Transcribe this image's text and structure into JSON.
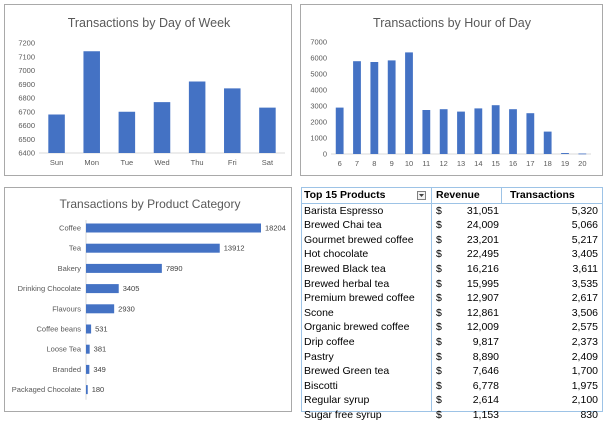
{
  "chart_data": [
    {
      "type": "bar",
      "title": "Transactions by Day of Week",
      "xlabel": "",
      "ylabel": "",
      "categories": [
        "Sun",
        "Mon",
        "Tue",
        "Wed",
        "Thu",
        "Fri",
        "Sat"
      ],
      "values": [
        6680,
        7140,
        6700,
        6770,
        6920,
        6870,
        6730
      ],
      "ylim": [
        6400,
        7200
      ],
      "yticks": [
        "6400",
        "6500",
        "6600",
        "6700",
        "6800",
        "6900",
        "7000",
        "7100",
        "7200"
      ],
      "grid": false,
      "bar_color": "#4472c4"
    },
    {
      "type": "bar",
      "title": "Transactions by Hour of Day",
      "xlabel": "",
      "ylabel": "",
      "categories": [
        "6",
        "7",
        "8",
        "9",
        "10",
        "11",
        "12",
        "13",
        "14",
        "15",
        "16",
        "17",
        "18",
        "19",
        "20"
      ],
      "values": [
        2900,
        5800,
        5750,
        5850,
        6350,
        2750,
        2800,
        2650,
        2850,
        3050,
        2800,
        2550,
        1400,
        60,
        30
      ],
      "ylim": [
        0,
        7000
      ],
      "yticks": [
        "0",
        "1000",
        "2000",
        "3000",
        "4000",
        "5000",
        "6000",
        "7000"
      ],
      "grid": false,
      "bar_color": "#4472c4"
    },
    {
      "type": "bar",
      "orientation": "horizontal",
      "title": "Transactions by Product Category",
      "xlabel": "",
      "ylabel": "",
      "categories": [
        "Coffee",
        "Tea",
        "Bakery",
        "Drinking Chocolate",
        "Flavours",
        "Coffee beans",
        "Loose Tea",
        "Branded",
        "Packaged Chocolate"
      ],
      "values": [
        18204,
        13912,
        7890,
        3405,
        2930,
        531,
        381,
        349,
        180
      ],
      "data_labels": [
        "18204",
        "13912",
        "7890",
        "3405",
        "2930",
        "531",
        "381",
        "349",
        "180"
      ],
      "xlim": [
        0,
        18204
      ],
      "grid": false,
      "bar_color": "#4472c4"
    },
    {
      "type": "table",
      "columns": [
        "Top 15 Products",
        "Revenue",
        "Transactions"
      ],
      "currency_symbol": "$",
      "rows": [
        [
          "Barista Espresso",
          "31,051",
          "5,320"
        ],
        [
          "Brewed Chai tea",
          "24,009",
          "5,066"
        ],
        [
          "Gourmet brewed coffee",
          "23,201",
          "5,217"
        ],
        [
          "Hot chocolate",
          "22,495",
          "3,405"
        ],
        [
          "Brewed Black tea",
          "16,216",
          "3,611"
        ],
        [
          "Brewed herbal tea",
          "15,995",
          "3,535"
        ],
        [
          "Premium brewed coffee",
          "12,907",
          "2,617"
        ],
        [
          "Scone",
          "12,861",
          "3,506"
        ],
        [
          "Organic brewed coffee",
          "12,009",
          "2,575"
        ],
        [
          "Drip coffee",
          "9,817",
          "2,373"
        ],
        [
          "Pastry",
          "8,890",
          "2,409"
        ],
        [
          "Brewed Green tea",
          "7,646",
          "1,700"
        ],
        [
          "Biscotti",
          "6,778",
          "1,975"
        ],
        [
          "Regular syrup",
          "2,614",
          "2,100"
        ],
        [
          "Sugar free syrup",
          "1,153",
          "830"
        ]
      ]
    }
  ],
  "colors": {
    "bar": "#4472c4",
    "table_border": "#9dc3e6",
    "panel_border": "#a9a9a9"
  }
}
